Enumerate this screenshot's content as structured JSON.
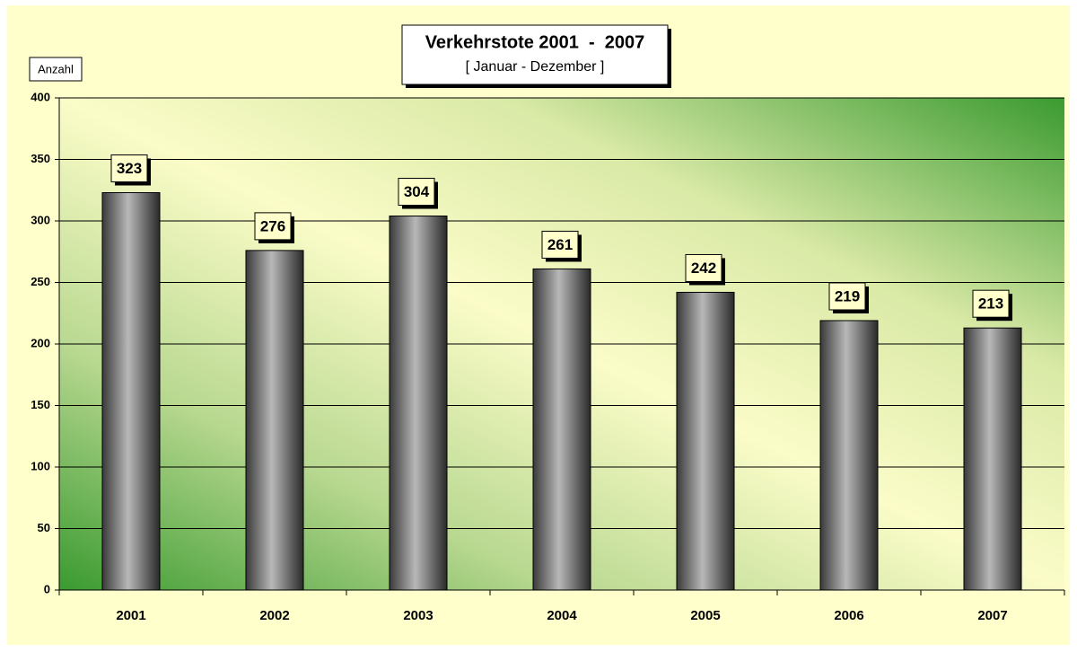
{
  "chart_data": {
    "type": "bar",
    "title": "Verkehrstote 2001  -  2007",
    "subtitle": "[ Januar - Dezember ]",
    "y_label": "Anzahl",
    "categories": [
      "2001",
      "2002",
      "2003",
      "2004",
      "2005",
      "2006",
      "2007"
    ],
    "values": [
      323,
      276,
      304,
      261,
      242,
      219,
      213
    ],
    "ylim": [
      0,
      400
    ],
    "yticks": [
      0,
      50,
      100,
      150,
      200,
      250,
      300,
      350,
      400
    ],
    "grid": true,
    "color": "#808080"
  }
}
